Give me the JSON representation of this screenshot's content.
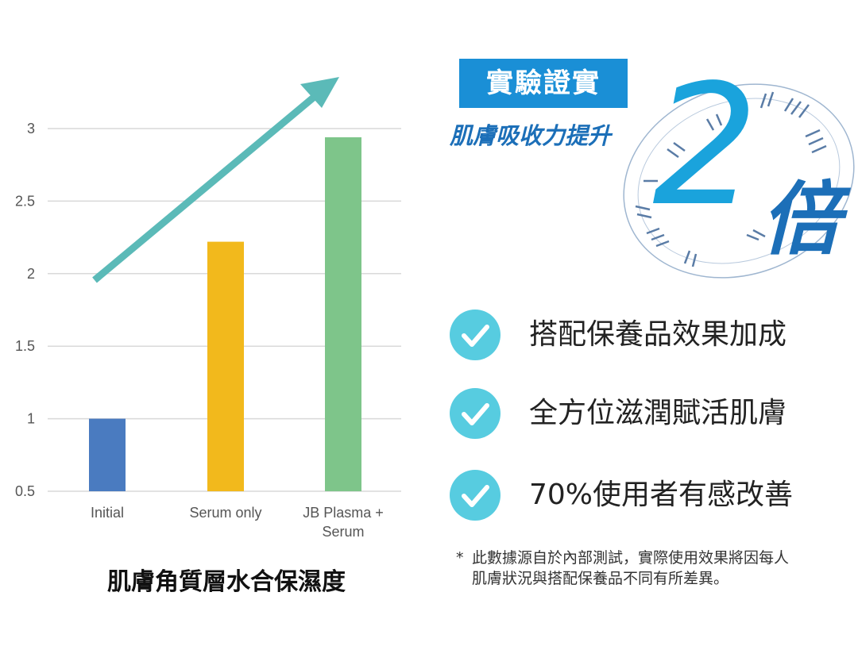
{
  "chart_data": {
    "type": "bar",
    "title": "肌膚角質層水合保濕度",
    "categories": [
      "Initial",
      "Serum only",
      "JB Plasma + Serum"
    ],
    "category_lines": [
      [
        "Initial"
      ],
      [
        "Serum only"
      ],
      [
        "JB Plasma +",
        "Serum"
      ]
    ],
    "values": [
      1.0,
      2.22,
      2.94
    ],
    "bar_colors": [
      "#4a7bc0",
      "#f2b91c",
      "#7ec58a"
    ],
    "ylim": [
      0.5,
      3
    ],
    "yticks": [
      "0.5",
      "1",
      "1.5",
      "2",
      "2.5",
      "3"
    ],
    "grid": true,
    "trend_arrow_color": "#5bbab8"
  },
  "badge": {
    "label": "實驗證實"
  },
  "claim": {
    "subtitle": "肌膚吸收力提升",
    "number": "2",
    "unit": "倍"
  },
  "features": [
    {
      "icon": "check-icon",
      "text": "搭配保養品效果加成"
    },
    {
      "icon": "check-icon",
      "text": "全方位滋潤賦活肌膚"
    },
    {
      "icon": "check-icon",
      "text": "70%使用者有感改善"
    }
  ],
  "footnote": {
    "marker": "*",
    "line1": "此數據源自於內部測試，實際使用效果將因每人",
    "line2": "肌膚狀況與搭配保養品不同有所差異。"
  },
  "colors": {
    "accent_blue": "#1a8fd6",
    "deep_blue": "#1c6fb8",
    "check_cyan": "#57cce0"
  }
}
